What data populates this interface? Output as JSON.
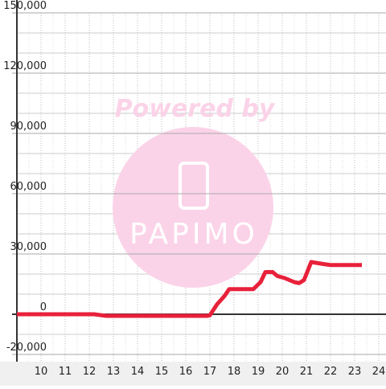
{
  "chart_data": {
    "type": "line",
    "x": [
      9.0,
      12.2,
      12.7,
      16.9,
      17.0,
      17.3,
      17.6,
      17.8,
      18.8,
      19.1,
      19.3,
      19.6,
      19.8,
      20.1,
      20.5,
      20.7,
      20.9,
      21.2,
      21.7,
      22.0,
      23.3
    ],
    "series": [
      {
        "color": "#e8213a",
        "values": [
          0,
          0,
          -800,
          -800,
          -500,
          5000,
          9000,
          12500,
          12500,
          16000,
          21000,
          21000,
          19000,
          18000,
          16000,
          15500,
          17000,
          26000,
          25000,
          24500,
          24500
        ]
      }
    ],
    "xlim": [
      9,
      24.3
    ],
    "xticks": [
      10,
      11,
      12,
      13,
      14,
      15,
      16,
      17,
      18,
      19,
      20,
      21,
      22,
      23,
      24
    ],
    "ylim": [
      -20000,
      150000
    ],
    "yticks": [
      {
        "value": -20000,
        "label": "-20,000"
      },
      0,
      {
        "value": 30000,
        "label": "30,000"
      },
      {
        "value": 60000,
        "label": "60,000"
      },
      {
        "value": 90000,
        "label": "90,000"
      },
      {
        "value": 120000,
        "label": "120,000"
      },
      {
        "value": 150000,
        "label": "150,000"
      }
    ],
    "y_minor_ticks": [
      -10000,
      10000,
      20000,
      40000,
      50000,
      70000,
      80000,
      100000,
      110000,
      130000,
      140000
    ],
    "grid": true,
    "watermark": {
      "title": "Powered by",
      "logo": "PAPIMO"
    }
  }
}
